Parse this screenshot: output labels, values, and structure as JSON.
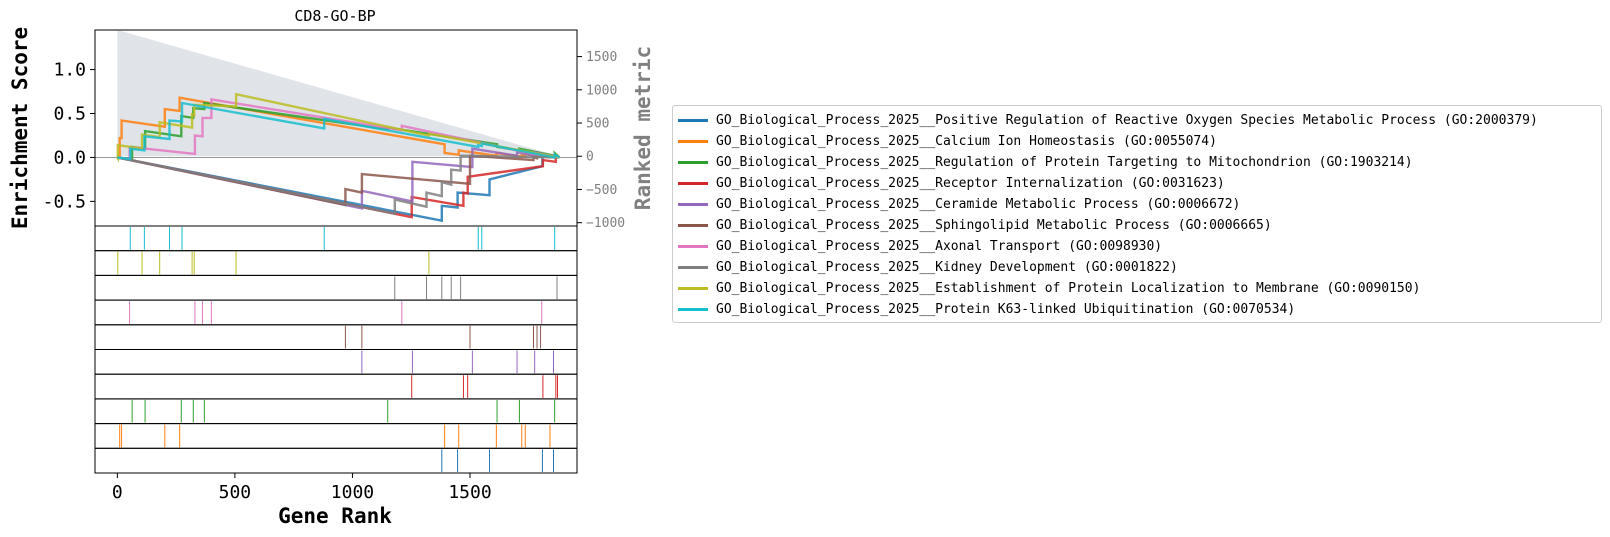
{
  "chart_data": {
    "type": "line",
    "title": "CD8-GO-BP",
    "xlabel": "Gene Rank",
    "ylabel": "Enrichment Score",
    "y2label": "Ranked metric",
    "xlim": [
      -95,
      1955
    ],
    "ylim": [
      -0.78,
      1.45
    ],
    "y2lim": [
      -1050,
      1900
    ],
    "xticks": [
      0,
      500,
      1000,
      1500
    ],
    "xtick_labels": [
      "0",
      "500",
      "1000",
      "1500"
    ],
    "yticks": [
      1.0,
      0.5,
      0.0,
      -0.5
    ],
    "ytick_labels": [
      "1.0",
      "0.5",
      "0.0",
      "-0.5"
    ],
    "y2ticks": [
      1500,
      1000,
      500,
      0,
      -500,
      -1000
    ],
    "y2tick_labels": [
      "1500",
      "1000",
      "500",
      "0",
      "−500",
      "−1000"
    ],
    "n_genes": 1880,
    "ranked_metric": {
      "x": [
        0,
        1880
      ],
      "y": [
        1900,
        0
      ],
      "color": "#d5dbe0"
    },
    "legend_position": "right",
    "series": [
      {
        "name": "GO_Biological_Process_2025__Positive Regulation of Reactive Oxygen Species Metabolic Process (GO:2000379)",
        "color": "#1f77b4",
        "hits": [
          1380,
          1447,
          1583,
          1808,
          1855
        ],
        "x": [
          0,
          1380,
          1380,
          1447,
          1447,
          1583,
          1583,
          1808,
          1808,
          1855,
          1855,
          1880
        ],
        "y": [
          0,
          -0.72,
          -0.55,
          -0.57,
          -0.4,
          -0.43,
          -0.25,
          -0.1,
          0.02,
          0.0,
          0.01,
          0.0
        ]
      },
      {
        "name": "GO_Biological_Process_2025__Calcium Ion Homeostasis (GO:0055074)",
        "color": "#ff7f0e",
        "hits": [
          10,
          18,
          202,
          265,
          1392,
          1452,
          1612,
          1720,
          1735,
          1840
        ],
        "x": [
          0,
          10,
          10,
          18,
          18,
          202,
          202,
          265,
          265,
          1392,
          1392,
          1452,
          1452,
          1612,
          1612,
          1720,
          1720,
          1735,
          1735,
          1840,
          1840,
          1880
        ],
        "y": [
          0,
          0.0,
          0.22,
          0.22,
          0.42,
          0.35,
          0.55,
          0.53,
          0.68,
          0.15,
          0.05,
          0.03,
          0.08,
          0.02,
          0.05,
          0.01,
          0.03,
          0.02,
          0.04,
          0.0,
          0.02,
          0.0
        ]
      },
      {
        "name": "GO_Biological_Process_2025__Regulation of Protein Targeting to Mitochondrion (GO:1903214)",
        "color": "#2ca02c",
        "hits": [
          63,
          118,
          272,
          323,
          370,
          1150,
          1615,
          1710,
          1860
        ],
        "x": [
          0,
          63,
          63,
          118,
          118,
          272,
          272,
          323,
          323,
          370,
          370,
          1150,
          1150,
          1615,
          1615,
          1710,
          1710,
          1860,
          1860,
          1880
        ],
        "y": [
          0,
          -0.02,
          0.12,
          0.1,
          0.3,
          0.24,
          0.47,
          0.45,
          0.56,
          0.55,
          0.62,
          0.32,
          0.34,
          0.15,
          0.12,
          0.08,
          0.1,
          0.02,
          0.05,
          0.0
        ]
      },
      {
        "name": "GO_Biological_Process_2025__Receptor Internalization (GO:0031623)",
        "color": "#d62728",
        "hits": [
          1252,
          1472,
          1490,
          1810,
          1865,
          1872
        ],
        "x": [
          0,
          1252,
          1252,
          1472,
          1472,
          1490,
          1490,
          1810,
          1810,
          1865,
          1865,
          1872,
          1872,
          1880
        ],
        "y": [
          0,
          -0.68,
          -0.45,
          -0.55,
          -0.4,
          -0.41,
          -0.22,
          -0.1,
          -0.03,
          -0.05,
          0.0,
          0.0,
          0.01,
          0.0
        ]
      },
      {
        "name": "GO_Biological_Process_2025__Ceramide Metabolic Process (GO:0006672)",
        "color": "#9467bd",
        "hits": [
          1040,
          1255,
          1510,
          1700,
          1775,
          1855
        ],
        "x": [
          0,
          1040,
          1040,
          1255,
          1255,
          1510,
          1510,
          1700,
          1700,
          1775,
          1775,
          1855,
          1855,
          1880
        ],
        "y": [
          0,
          -0.58,
          -0.38,
          -0.5,
          -0.05,
          -0.11,
          0.1,
          0.02,
          0.06,
          0.02,
          0.06,
          0.01,
          0.02,
          0.0
        ]
      },
      {
        "name": "GO_Biological_Process_2025__Sphingolipid Metabolic Process (GO:0006665)",
        "color": "#8c564b",
        "hits": [
          970,
          1040,
          1500,
          1770,
          1785,
          1800
        ],
        "x": [
          0,
          970,
          970,
          1040,
          1040,
          1500,
          1500,
          1770,
          1770,
          1785,
          1785,
          1800,
          1800,
          1880
        ],
        "y": [
          0,
          -0.54,
          -0.36,
          -0.4,
          -0.19,
          -0.3,
          0.02,
          -0.03,
          0.0,
          -0.01,
          0.02,
          0.01,
          0.03,
          0.0
        ]
      },
      {
        "name": "GO_Biological_Process_2025__Axonal Transport (GO:0098930)",
        "color": "#e377c2",
        "hits": [
          52,
          330,
          362,
          400,
          1210,
          1805
        ],
        "x": [
          0,
          52,
          52,
          330,
          330,
          362,
          362,
          400,
          400,
          1210,
          1210,
          1805,
          1805,
          1880
        ],
        "y": [
          0,
          -0.02,
          0.12,
          0.04,
          0.25,
          0.24,
          0.45,
          0.45,
          0.66,
          0.31,
          0.36,
          0.02,
          0.04,
          0.0
        ]
      },
      {
        "name": "GO_Biological_Process_2025__Kidney Development (GO:0001822)",
        "color": "#7f7f7f",
        "hits": [
          1180,
          1315,
          1380,
          1420,
          1460,
          1870
        ],
        "x": [
          0,
          1180,
          1180,
          1315,
          1315,
          1380,
          1380,
          1420,
          1420,
          1460,
          1460,
          1870,
          1870,
          1880
        ],
        "y": [
          0,
          -0.64,
          -0.48,
          -0.56,
          -0.4,
          -0.44,
          -0.28,
          -0.31,
          -0.14,
          -0.15,
          0.02,
          0.0,
          0.01,
          0.0
        ]
      },
      {
        "name": "GO_Biological_Process_2025__Establishment of Protein Localization to Membrane (GO:0090150)",
        "color": "#bcbd22",
        "hits": [
          2,
          105,
          180,
          318,
          327,
          505,
          1325
        ],
        "x": [
          0,
          2,
          2,
          105,
          105,
          180,
          180,
          318,
          318,
          327,
          327,
          505,
          505,
          1325,
          1325,
          1880
        ],
        "y": [
          0,
          -0.01,
          0.14,
          0.1,
          0.26,
          0.23,
          0.4,
          0.34,
          0.49,
          0.48,
          0.6,
          0.58,
          0.72,
          0.25,
          0.27,
          0.0
        ]
      },
      {
        "name": "GO_Biological_Process_2025__Protein K63-linked Ubiquitination (GO:0070534)",
        "color": "#17becf",
        "hits": [
          55,
          115,
          222,
          275,
          880,
          1535,
          1550,
          1860
        ],
        "x": [
          0,
          55,
          55,
          115,
          115,
          222,
          222,
          275,
          275,
          880,
          880,
          1535,
          1535,
          1550,
          1550,
          1860,
          1860,
          1880
        ],
        "y": [
          0,
          -0.02,
          0.1,
          0.08,
          0.24,
          0.21,
          0.42,
          0.41,
          0.62,
          0.33,
          0.44,
          0.12,
          0.14,
          0.13,
          0.16,
          0.0,
          0.03,
          0.0
        ]
      }
    ],
    "hit_rows_order": [
      "GO_Biological_Process_2025__Protein K63-linked Ubiquitination (GO:0070534)",
      "GO_Biological_Process_2025__Establishment of Protein Localization to Membrane (GO:0090150)",
      "GO_Biological_Process_2025__Kidney Development (GO:0001822)",
      "GO_Biological_Process_2025__Axonal Transport (GO:0098930)",
      "GO_Biological_Process_2025__Sphingolipid Metabolic Process (GO:0006665)",
      "GO_Biological_Process_2025__Ceramide Metabolic Process (GO:0006672)",
      "GO_Biological_Process_2025__Receptor Internalization (GO:0031623)",
      "GO_Biological_Process_2025__Regulation of Protein Targeting to Mitochondrion (GO:1903214)",
      "GO_Biological_Process_2025__Calcium Ion Homeostasis (GO:0055074)",
      "GO_Biological_Process_2025__Positive Regulation of Reactive Oxygen Species Metabolic Process (GO:2000379)"
    ]
  }
}
